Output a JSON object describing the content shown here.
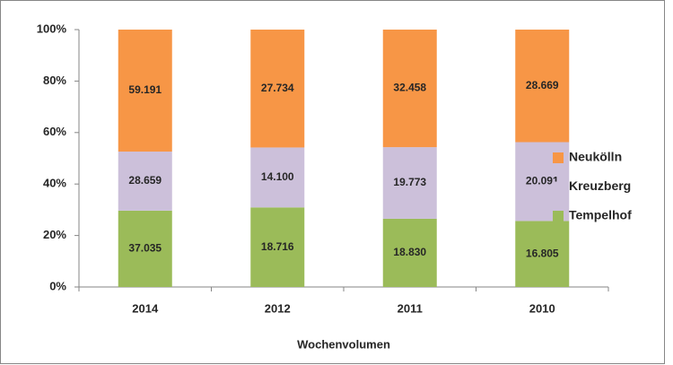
{
  "chart_data": {
    "type": "bar",
    "stacked": "percent",
    "x_label": "Wochenvolumen",
    "categories": [
      "2014",
      "2012",
      "2011",
      "2010"
    ],
    "series": [
      {
        "name": "Tempelhof",
        "color": "#9bbb59",
        "values": [
          37.035,
          18.716,
          18.83,
          16.805
        ],
        "value_labels": [
          "37.035",
          "18.716",
          "18.830",
          "16.805"
        ]
      },
      {
        "name": "Kreuzberg",
        "color": "#ccc0da",
        "values": [
          28.659,
          14.1,
          19.773,
          20.091
        ],
        "value_labels": [
          "28.659",
          "14.100",
          "19.773",
          "20.091"
        ]
      },
      {
        "name": "Neukölln",
        "color": "#f79646",
        "values": [
          59.191,
          27.734,
          32.458,
          28.669
        ],
        "value_labels": [
          "59.191",
          "27.734",
          "32.458",
          "28.669"
        ]
      }
    ],
    "ylim": [
      0,
      100
    ],
    "yticks": [
      {
        "value": 0,
        "label": "0%"
      },
      {
        "value": 20,
        "label": "20%"
      },
      {
        "value": 40,
        "label": "40%"
      },
      {
        "value": 60,
        "label": "60%"
      },
      {
        "value": 80,
        "label": "80%"
      },
      {
        "value": 100,
        "label": "100%"
      }
    ],
    "legend": "right"
  }
}
